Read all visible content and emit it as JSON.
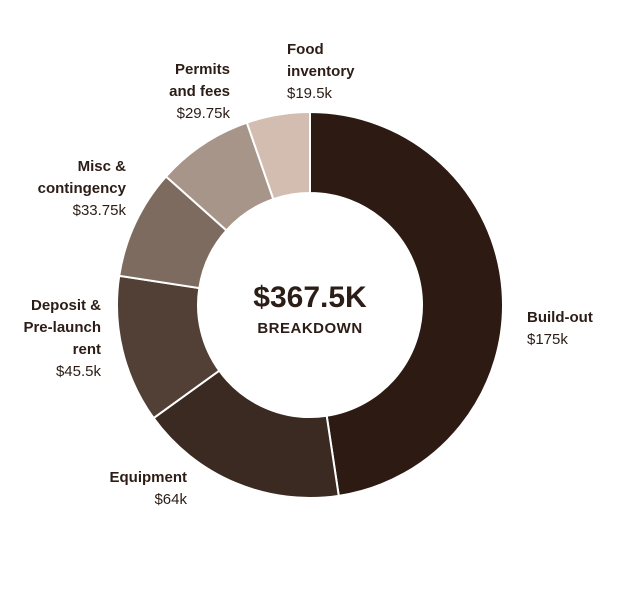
{
  "chart_data": {
    "type": "pie",
    "center_total": "$367.5K",
    "center_caption": "BREAKDOWN",
    "slices": [
      {
        "name_lines": [
          "Build-out"
        ],
        "value": 175,
        "value_label": "$175k",
        "color": "#2c1a13"
      },
      {
        "name_lines": [
          "Equipment"
        ],
        "value": 64,
        "value_label": "$64k",
        "color": "#3b2a21"
      },
      {
        "name_lines": [
          "Deposit &",
          "Pre-launch",
          "rent"
        ],
        "value": 45.5,
        "value_label": "$45.5k",
        "color": "#523f35"
      },
      {
        "name_lines": [
          "Misc &",
          "contingency"
        ],
        "value": 33.75,
        "value_label": "$33.75k",
        "color": "#7e6b60"
      },
      {
        "name_lines": [
          "Permits",
          "and fees"
        ],
        "value": 29.75,
        "value_label": "$29.75k",
        "color": "#a89589"
      },
      {
        "name_lines": [
          "Food",
          "inventory"
        ],
        "value": 19.5,
        "value_label": "$19.5k",
        "color": "#d3bdb1"
      }
    ]
  }
}
